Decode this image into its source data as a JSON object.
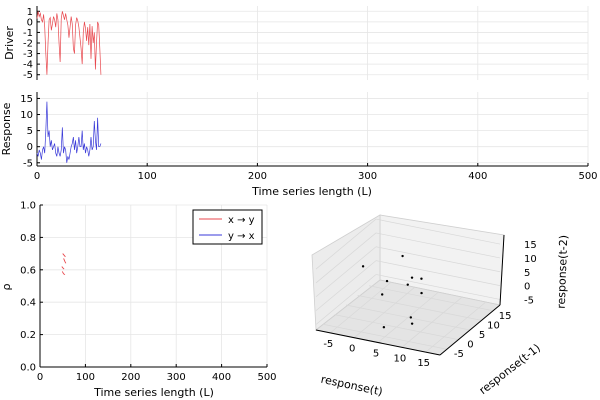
{
  "chart_data": [
    {
      "id": "driver",
      "type": "line",
      "xlabel": "",
      "ylabel": "Driver",
      "xlim": [
        0,
        500
      ],
      "ylim": [
        -5.5,
        1.5
      ],
      "yticks": [
        "1",
        "0",
        "-1",
        "-2",
        "-3",
        "-4",
        "-5"
      ],
      "ytick_values": [
        1,
        0,
        -1,
        -2,
        -3,
        -4,
        -5
      ],
      "color": "#e8474d",
      "series": [
        {
          "x": [
            0,
            1,
            2,
            3,
            4,
            5,
            6,
            7,
            8,
            9,
            10,
            11,
            12,
            13,
            14,
            15,
            16,
            17,
            18,
            19,
            20,
            21,
            22,
            23,
            24,
            25,
            26,
            27,
            28,
            29,
            30,
            31,
            32,
            33,
            34,
            35,
            36,
            37,
            38,
            39,
            40,
            41,
            42,
            43,
            44,
            45,
            46,
            47,
            48,
            49,
            50,
            51,
            52,
            53,
            54,
            55,
            56,
            57,
            58
          ],
          "y": [
            0.3,
            1.0,
            0.5,
            0.8,
            0.2,
            0.0,
            0.7,
            -0.5,
            -3.0,
            -5.0,
            -2.0,
            0.2,
            0.4,
            -0.8,
            -0.2,
            0.5,
            0.2,
            -0.5,
            0.8,
            0.2,
            -2.0,
            -3.8,
            0.3,
            1.0,
            0.6,
            0.2,
            0.8,
            0.2,
            -0.3,
            -1.5,
            -0.5,
            0.5,
            -0.2,
            -2.5,
            -3.0,
            -0.3,
            0.4,
            0.1,
            -0.5,
            -1.5,
            -2.5,
            -4.0,
            -1.0,
            0.0,
            -0.6,
            -1.8,
            -0.5,
            -2.2,
            -0.2,
            -3.5,
            -0.4,
            -2.0,
            -1.0,
            -4.5,
            -2.0,
            0.0,
            -0.3,
            -2.5,
            -5.0
          ]
        }
      ]
    },
    {
      "id": "response",
      "type": "line",
      "xlabel": "Time series length (L)",
      "ylabel": "Response",
      "xlim": [
        0,
        500
      ],
      "ylim": [
        -6,
        17
      ],
      "xticks": [
        "0",
        "100",
        "200",
        "300",
        "400",
        "500"
      ],
      "xtick_values": [
        0,
        100,
        200,
        300,
        400,
        500
      ],
      "yticks": [
        "15",
        "10",
        "5",
        "0",
        "-5"
      ],
      "ytick_values": [
        15,
        10,
        5,
        0,
        -5
      ],
      "color": "#3a3ad8",
      "series": [
        {
          "x": [
            0,
            1,
            2,
            3,
            4,
            5,
            6,
            7,
            8,
            9,
            10,
            11,
            12,
            13,
            14,
            15,
            16,
            17,
            18,
            19,
            20,
            21,
            22,
            23,
            24,
            25,
            26,
            27,
            28,
            29,
            30,
            31,
            32,
            33,
            34,
            35,
            36,
            37,
            38,
            39,
            40,
            41,
            42,
            43,
            44,
            45,
            46,
            47,
            48,
            49,
            50,
            51,
            52,
            53,
            54,
            55,
            56,
            57,
            58
          ],
          "y": [
            -2,
            -3,
            -1,
            -2,
            -4,
            -1,
            0,
            -2,
            5,
            14,
            3,
            5,
            0,
            2,
            -1,
            0,
            1,
            -2,
            -3,
            0,
            -2,
            -3,
            -1,
            6,
            -2,
            0,
            -1,
            -5,
            -3,
            -4,
            -2,
            0,
            1,
            3,
            -1,
            2,
            -2,
            0,
            3,
            0,
            0,
            5,
            -1,
            1,
            -2,
            0,
            -1,
            -3,
            -1,
            3,
            -1,
            0,
            8,
            2,
            -1,
            9,
            0,
            0,
            1
          ]
        }
      ]
    },
    {
      "id": "rho",
      "type": "line",
      "xlabel": "Time series length (L)",
      "ylabel": "ρ",
      "xlim": [
        0,
        500
      ],
      "ylim": [
        0,
        1
      ],
      "xticks": [
        "0",
        "100",
        "200",
        "300",
        "400",
        "500"
      ],
      "xtick_values": [
        0,
        100,
        200,
        300,
        400,
        500
      ],
      "yticks": [
        "0.0",
        "0.2",
        "0.4",
        "0.6",
        "0.8",
        "1.0"
      ],
      "ytick_values": [
        0,
        0.2,
        0.4,
        0.6,
        0.8,
        1.0
      ],
      "legend": "top-right",
      "series": [
        {
          "name": "x → y",
          "color": "#e8474d",
          "segments": [
            [
              [
                50,
                0.7
              ],
              [
                53,
                0.69
              ],
              [
                56,
                0.68
              ]
            ],
            [
              [
                52,
                0.67
              ],
              [
                55,
                0.65
              ],
              [
                57,
                0.64
              ]
            ],
            [
              [
                48,
                0.62
              ],
              [
                51,
                0.61
              ],
              [
                53,
                0.605
              ]
            ],
            [
              [
                49,
                0.59
              ],
              [
                52,
                0.575
              ],
              [
                55,
                0.57
              ]
            ]
          ]
        },
        {
          "name": "y → x",
          "color": "#3a3ad8",
          "segments": []
        }
      ]
    },
    {
      "id": "embedding3d",
      "type": "scatter",
      "xlabel": "response(t)",
      "ylabel": "response(t-1)",
      "zlabel": "response(t-2)",
      "xticks": [
        "-5",
        "0",
        "5",
        "10",
        "15"
      ],
      "yticks": [
        "-5",
        "0",
        "5",
        "10",
        "15"
      ],
      "zticks": [
        "15",
        "10",
        "5",
        "0",
        "-5"
      ],
      "points": [
        {
          "x": 2.8,
          "y": 7.2,
          "z": 12.9
        },
        {
          "x": 5.7,
          "y": -6.9,
          "z": -2.0
        },
        {
          "x": 3.9,
          "y": 13.1,
          "z": 1.0
        },
        {
          "x": 1.2,
          "y": 14.6,
          "z": -0.6
        },
        {
          "x": 1.9,
          "y": 11.3,
          "z": -0.6
        },
        {
          "x": 0.7,
          "y": 4.8,
          "z": 4.8
        },
        {
          "x": 6.1,
          "y": 8.6,
          "z": -0.3
        },
        {
          "x": 0.8,
          "y": 2.5,
          "z": 1.6
        },
        {
          "x": -6.5,
          "y": 9.3,
          "z": 4.5
        },
        {
          "x": 6.8,
          "y": 2.5,
          "z": -4.6
        },
        {
          "x": 9.3,
          "y": -2.1,
          "z": -2.8
        }
      ]
    }
  ]
}
